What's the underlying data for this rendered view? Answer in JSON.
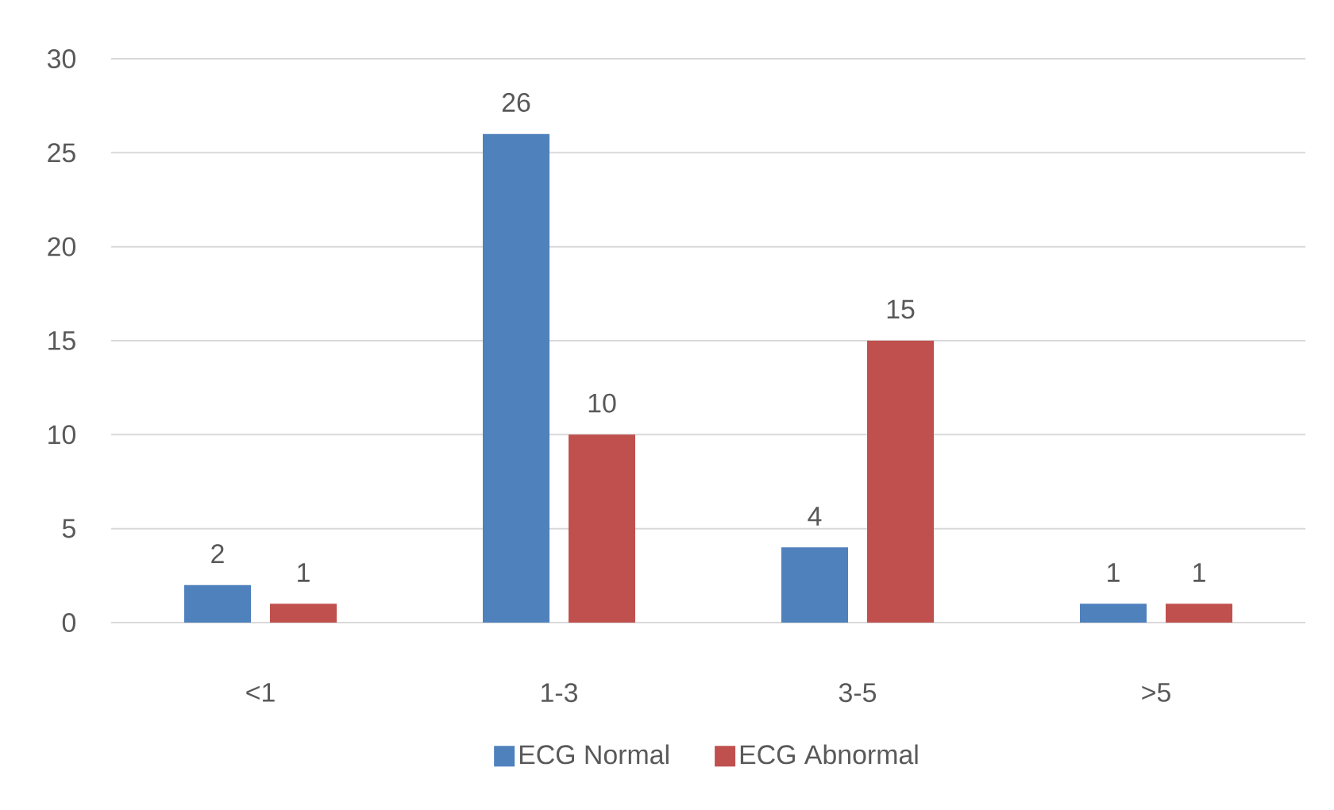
{
  "chart_data": {
    "type": "bar",
    "categories": [
      "<1",
      "1-3",
      "3-5",
      ">5"
    ],
    "series": [
      {
        "name": "ECG Normal",
        "color": "#4f81bd",
        "values": [
          2,
          26,
          4,
          1
        ]
      },
      {
        "name": "ECG Abnormal",
        "color": "#c0504d",
        "values": [
          1,
          10,
          15,
          1
        ]
      }
    ],
    "ylim": [
      0,
      30
    ],
    "yticks": [
      0,
      5,
      10,
      15,
      20,
      25,
      30
    ],
    "grid": "y",
    "legend": "bottom",
    "data_labels": true
  }
}
